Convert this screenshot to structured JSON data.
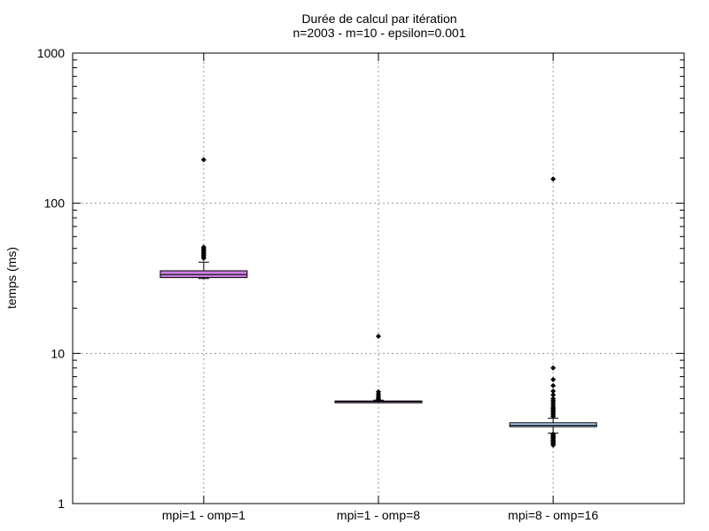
{
  "chart_data": {
    "type": "box",
    "title": "Durée de calcul par itération",
    "subtitle": "n=2003 - m=10 - epsilon=0.001",
    "xlabel": "",
    "ylabel": "temps (ms)",
    "yscale": "log",
    "ylim": [
      1,
      1000
    ],
    "yticks": [
      1,
      10,
      100,
      1000
    ],
    "ytick_labels": [
      "1",
      "10",
      "100",
      "1000"
    ],
    "grid": true,
    "categories": [
      "mpi=1 - omp=1",
      "mpi=1 - omp=8",
      "mpi=8 - omp=16"
    ],
    "boxes": [
      {
        "category": "mpi=1 - omp=1",
        "color": "#c77fe0",
        "whisker_low": 31.5,
        "q1": 32.0,
        "median": 33.5,
        "q3": 35.5,
        "whisker_high": 40.5,
        "outliers": [
          43,
          44,
          45,
          46,
          47,
          48,
          49,
          50,
          51,
          195
        ]
      },
      {
        "category": "mpi=1 - omp=8",
        "color": "#c77fe0",
        "whisker_low": 4.7,
        "q1": 4.75,
        "median": 4.78,
        "q3": 4.82,
        "whisker_high": 4.88,
        "outliers": [
          4.95,
          5.05,
          5.2,
          5.35,
          5.55,
          13
        ]
      },
      {
        "category": "mpi=8 - omp=16",
        "color": "#aaccf0",
        "whisker_low": 2.95,
        "q1": 3.25,
        "median": 3.32,
        "q3": 3.45,
        "whisker_high": 3.7,
        "outliers": [
          2.45,
          2.5,
          2.55,
          2.6,
          2.65,
          2.7,
          2.75,
          2.8,
          2.85,
          2.9,
          3.8,
          3.9,
          4.0,
          4.1,
          4.2,
          4.3,
          4.4,
          4.55,
          4.7,
          4.85,
          5.0,
          5.3,
          5.6,
          6.1,
          6.7,
          8.0,
          145
        ]
      }
    ]
  }
}
